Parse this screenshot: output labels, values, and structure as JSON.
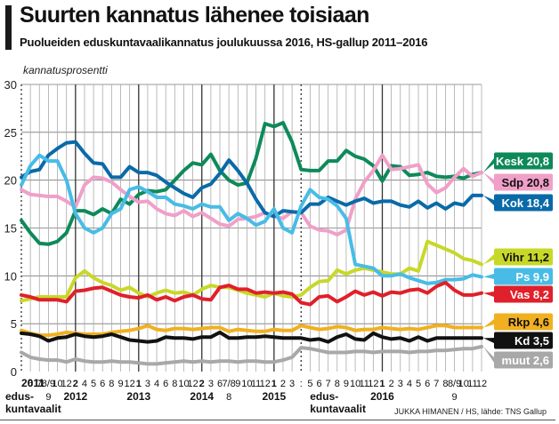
{
  "header": {
    "title": "Suurten kannatus lähenee toisiaan",
    "subtitle": "Puolueiden eduskuntavaalikannatus joulukuussa 2016, HS-gallup 2011–2016"
  },
  "credit": "JUKKA HIMANEN / HS, lähde: TNS Gallup",
  "chart_data": {
    "type": "line",
    "title": "Suurten kannatus lähenee toisiaan",
    "subtitle": "Puolueiden eduskuntavaalikannatus joulukuussa 2016, HS-gallup 2011–2016",
    "ylabel": "kannatusprosentti",
    "xlabel": "",
    "ylim": [
      0,
      30
    ],
    "yticks": [
      0,
      5,
      10,
      15,
      20,
      25,
      30
    ],
    "grid": true,
    "legend": "right (end-of-line labels)",
    "x_tick_labels": [
      "2011",
      "6",
      "7",
      "8/9",
      "10",
      "12",
      "2",
      "4",
      "5",
      "6",
      "8",
      "9",
      "12",
      "1",
      "3",
      "4",
      "6",
      "8",
      "10",
      "12",
      "2",
      "3",
      "6",
      "7/8",
      "9",
      "10",
      "11",
      "12",
      "1",
      "2",
      "3",
      "",
      "5",
      "6",
      "7",
      "8",
      "9",
      "10",
      "11",
      "12",
      "1",
      "2",
      "3",
      "4",
      "5",
      "6",
      "7",
      "8",
      "8/9",
      "10",
      "11",
      "12"
    ],
    "x_bold_ticks": [
      0,
      6,
      13,
      20,
      28,
      40
    ],
    "year_labels": [
      {
        "index": 0,
        "text": "edus-"
      },
      {
        "index": 0,
        "text2": "kuntavaalit"
      },
      {
        "index": 3,
        "text": "9"
      },
      {
        "index": 6,
        "text": "2012"
      },
      {
        "index": 13,
        "text": "2013"
      },
      {
        "index": 20,
        "text": "2014"
      },
      {
        "index": 23,
        "text": "8"
      },
      {
        "index": 28,
        "text": "2015"
      },
      {
        "index": 31,
        "text": "edus-",
        "text2": "kuntavaalit"
      },
      {
        "index": 40,
        "text": "2016"
      },
      {
        "index": 48,
        "text": "9"
      }
    ],
    "election_markers": [
      0,
      31
    ],
    "series": [
      {
        "name": "Kesk",
        "label": "Kesk 20,8",
        "color": "#0e8a5a",
        "label_text_color": "#ffffff",
        "values": [
          15.8,
          14.5,
          13.4,
          13.3,
          13.6,
          14.5,
          16.8,
          16.8,
          16.4,
          17.0,
          16.5,
          18.0,
          17.5,
          18.5,
          18.9,
          18.8,
          19.0,
          20.0,
          21.0,
          21.8,
          21.6,
          22.7,
          21.0,
          20.0,
          19.5,
          19.7,
          22.3,
          25.9,
          25.6,
          26.0,
          24.0,
          21.1,
          21.0,
          21.0,
          22.0,
          22.0,
          23.1,
          22.5,
          22.2,
          21.5,
          19.9,
          21.5,
          21.4,
          20.5,
          20.6,
          20.8,
          20.4,
          20.3,
          20.4,
          20.2,
          20.6,
          20.8
        ]
      },
      {
        "name": "Sdp",
        "label": "Sdp 20,8",
        "color": "#f0a0c8",
        "label_text_color": "#111111",
        "values": [
          19.0,
          18.5,
          18.4,
          18.3,
          18.3,
          17.8,
          17.2,
          19.5,
          20.3,
          20.2,
          19.8,
          19.0,
          18.3,
          17.7,
          17.8,
          17.0,
          16.5,
          16.3,
          16.8,
          16.2,
          16.6,
          16.0,
          15.4,
          15.2,
          15.9,
          16.0,
          16.2,
          16.6,
          16.2,
          16.0,
          16.7,
          16.6,
          15.2,
          14.8,
          14.7,
          14.3,
          14.8,
          18.0,
          19.8,
          21.0,
          22.6,
          21.1,
          21.2,
          21.4,
          21.6,
          19.6,
          18.7,
          19.2,
          20.3,
          21.2,
          20.4,
          20.8
        ]
      },
      {
        "name": "Kok",
        "label": "Kok 18,4",
        "color": "#0a6aa8",
        "label_text_color": "#ffffff",
        "values": [
          20.3,
          20.9,
          21.1,
          22.6,
          23.3,
          23.9,
          24.0,
          22.8,
          21.8,
          21.7,
          20.3,
          20.3,
          21.4,
          20.8,
          20.8,
          20.5,
          19.8,
          19.2,
          18.6,
          18.2,
          19.2,
          19.6,
          20.7,
          22.1,
          21.0,
          19.7,
          18.0,
          16.6,
          16.2,
          16.8,
          16.7,
          16.6,
          17.5,
          17.5,
          18.2,
          17.8,
          17.4,
          17.8,
          18.1,
          17.6,
          17.8,
          17.8,
          17.4,
          17.2,
          17.8,
          17.1,
          17.6,
          17.0,
          17.6,
          17.4,
          18.4,
          18.4
        ]
      },
      {
        "name": "Vihr",
        "label": "Vihr 11,2",
        "color": "#c8d828",
        "label_text_color": "#111111",
        "values": [
          7.4,
          7.6,
          7.8,
          7.8,
          7.8,
          7.8,
          9.8,
          10.5,
          9.8,
          9.3,
          9.0,
          8.5,
          8.8,
          8.2,
          7.8,
          8.2,
          8.5,
          8.2,
          8.3,
          8.0,
          8.6,
          9.0,
          8.8,
          8.8,
          8.5,
          8.2,
          8.0,
          7.8,
          8.2,
          7.9,
          7.8,
          8.0,
          8.8,
          9.4,
          9.5,
          10.6,
          10.2,
          10.6,
          10.8,
          10.6,
          10.4,
          10.2,
          10.2,
          10.8,
          10.5,
          13.6,
          13.2,
          12.8,
          12.4,
          11.8,
          11.6,
          11.2
        ]
      },
      {
        "name": "Ps",
        "label": "Ps 9,9",
        "color": "#48bce6",
        "label_text_color": "#ffffff",
        "values": [
          19.5,
          21.5,
          22.6,
          22.0,
          22.0,
          20.0,
          16.5,
          15.0,
          14.5,
          15.0,
          16.5,
          17.0,
          19.0,
          19.3,
          18.8,
          18.2,
          18.2,
          17.5,
          17.3,
          17.0,
          17.5,
          17.2,
          17.2,
          15.8,
          16.5,
          16.0,
          15.3,
          15.7,
          17.0,
          15.0,
          14.5,
          17.3,
          19.0,
          18.2,
          18.0,
          17.3,
          16.0,
          11.2,
          11.0,
          10.8,
          10.0,
          10.0,
          10.2,
          9.8,
          9.5,
          9.2,
          9.3,
          9.6,
          9.6,
          9.7,
          10.1,
          9.9
        ]
      },
      {
        "name": "Vas",
        "label": "Vas 8,2",
        "color": "#e0202a",
        "label_text_color": "#ffffff",
        "values": [
          8.0,
          7.8,
          7.5,
          7.5,
          7.5,
          7.3,
          8.4,
          8.5,
          8.7,
          8.8,
          8.4,
          8.0,
          7.8,
          7.7,
          8.0,
          7.5,
          7.8,
          7.4,
          7.8,
          8.0,
          7.6,
          7.5,
          8.8,
          9.0,
          8.6,
          8.6,
          8.2,
          8.3,
          8.2,
          8.3,
          8.1,
          7.2,
          7.0,
          7.8,
          7.9,
          7.3,
          7.8,
          8.4,
          8.0,
          8.3,
          7.9,
          8.3,
          8.2,
          8.5,
          8.6,
          8.2,
          8.9,
          9.3,
          8.5,
          8.0,
          8.0,
          8.2
        ]
      },
      {
        "name": "Rkp",
        "label": "Rkp 4,6",
        "color": "#f0b020",
        "label_text_color": "#111111",
        "values": [
          4.3,
          4.0,
          3.8,
          3.8,
          3.9,
          4.1,
          4.0,
          3.9,
          3.9,
          3.9,
          4.1,
          4.2,
          4.3,
          4.5,
          4.8,
          4.4,
          4.3,
          4.5,
          4.5,
          4.4,
          4.5,
          4.6,
          4.6,
          4.2,
          4.4,
          4.3,
          4.2,
          4.2,
          4.4,
          4.3,
          4.3,
          4.8,
          4.6,
          4.4,
          4.5,
          4.7,
          4.6,
          4.3,
          4.4,
          4.4,
          4.6,
          4.5,
          4.4,
          4.5,
          4.4,
          4.6,
          4.8,
          4.8,
          4.6,
          4.6,
          4.6,
          4.6
        ]
      },
      {
        "name": "Kd",
        "label": "Kd 3,5",
        "color": "#111111",
        "label_text_color": "#ffffff",
        "values": [
          4.0,
          3.9,
          3.7,
          3.2,
          3.5,
          3.6,
          3.9,
          3.7,
          3.6,
          3.7,
          3.9,
          3.6,
          3.3,
          3.2,
          3.1,
          3.2,
          3.6,
          3.5,
          3.5,
          3.4,
          3.6,
          3.6,
          4.1,
          3.5,
          3.5,
          3.6,
          3.6,
          3.7,
          3.6,
          3.5,
          3.5,
          3.5,
          3.3,
          3.4,
          3.1,
          3.6,
          3.9,
          3.4,
          3.3,
          4.0,
          3.6,
          3.4,
          3.5,
          3.2,
          3.6,
          3.2,
          3.5,
          3.5,
          3.5,
          3.5,
          3.5,
          3.5
        ]
      },
      {
        "name": "muut",
        "label": "muut 2,6",
        "color": "#a8a8a8",
        "label_text_color": "#ffffff",
        "values": [
          2.0,
          1.5,
          1.3,
          1.2,
          1.2,
          1.0,
          1.3,
          1.1,
          1.0,
          1.0,
          1.1,
          1.0,
          1.0,
          0.9,
          0.8,
          0.8,
          0.9,
          1.0,
          1.1,
          1.0,
          1.1,
          1.0,
          1.1,
          1.1,
          1.0,
          1.1,
          1.1,
          1.0,
          1.0,
          1.2,
          1.5,
          2.5,
          2.4,
          2.2,
          2.0,
          2.0,
          2.0,
          2.1,
          2.1,
          2.0,
          2.1,
          2.1,
          2.1,
          2.0,
          2.1,
          2.1,
          2.2,
          2.2,
          2.3,
          2.4,
          2.4,
          2.6
        ]
      }
    ]
  }
}
